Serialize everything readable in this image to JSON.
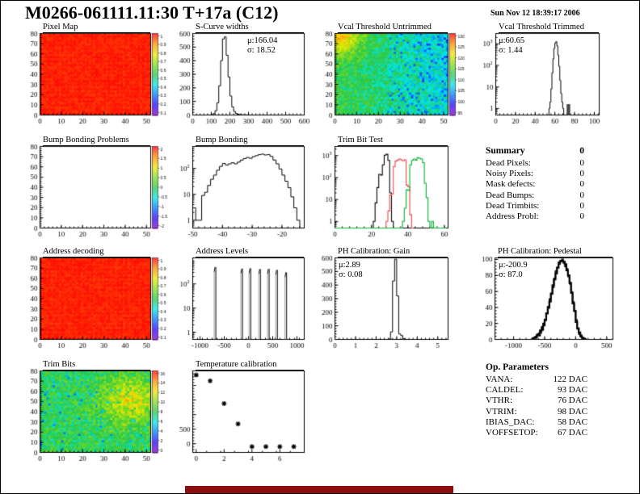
{
  "page": {
    "title": "M0266-061111.11:30 T+17a (C12)",
    "datetime": "Sun Nov 12 18:39:17 2006"
  },
  "colors": {
    "histogram_black": "#000000",
    "histogram_red": "#f04545",
    "histogram_green": "#00b22d",
    "heatmap_red": "#f81000",
    "footer_bar": "#8b0f0f",
    "palette": [
      "#8200c8",
      "#2800ff",
      "#0078ff",
      "#00e6e6",
      "#28c846",
      "#82dc1e",
      "#f0e600",
      "#ff8c00",
      "#ff0000"
    ]
  },
  "chart_data": {
    "pixel_map": {
      "type": "heatmap",
      "variant": "solid-red",
      "title": "Pixel Map",
      "x_range": [
        0,
        52
      ],
      "x_ticks": [
        0,
        10,
        20,
        30,
        40,
        50
      ],
      "y_range": [
        0,
        80
      ],
      "y_ticks": [
        0,
        10,
        20,
        30,
        40,
        50,
        60,
        70,
        80
      ],
      "colorbar_labels": [
        "1",
        "0.9",
        "0.8",
        "0.7",
        "0.6",
        "0.5",
        "0.4",
        "0.3",
        "0.2",
        "0.1"
      ]
    },
    "scurve": {
      "type": "bar",
      "render": "step-histogram",
      "title": "S-Curve widths",
      "x_range": [
        0,
        600
      ],
      "x_ticks": [
        0,
        100,
        200,
        300,
        400,
        500,
        600
      ],
      "y_range": [
        0,
        600
      ],
      "y_ticks": [
        0,
        100,
        200,
        300,
        400,
        500,
        600
      ],
      "bin_width": 10,
      "bins": [
        [
          90,
          1
        ],
        [
          100,
          3
        ],
        [
          110,
          10
        ],
        [
          120,
          32
        ],
        [
          130,
          90
        ],
        [
          140,
          215
        ],
        [
          150,
          400
        ],
        [
          160,
          560
        ],
        [
          170,
          575
        ],
        [
          180,
          440
        ],
        [
          190,
          280
        ],
        [
          200,
          140
        ],
        [
          210,
          60
        ],
        [
          220,
          26
        ],
        [
          230,
          12
        ],
        [
          240,
          6
        ],
        [
          250,
          3
        ],
        [
          260,
          2
        ],
        [
          270,
          1
        ],
        [
          280,
          1
        ],
        [
          290,
          1
        ],
        [
          300,
          1
        ],
        [
          310,
          0
        ]
      ],
      "stats_mu": "μ:166.04",
      "stats_sigma": "σ: 18.52"
    },
    "vcal_untrimmed": {
      "type": "heatmap",
      "variant": "noise-threshold",
      "title": "Vcal Threshold Untrimmed",
      "x_range": [
        0,
        52
      ],
      "x_ticks": [
        0,
        10,
        20,
        30,
        40,
        50
      ],
      "y_range": [
        0,
        80
      ],
      "y_ticks": [
        0,
        10,
        20,
        30,
        40,
        50,
        60,
        70,
        80
      ],
      "colorbar_labels": [
        "130",
        "125",
        "120",
        "115",
        "110",
        "105",
        "100",
        "95"
      ]
    },
    "vcal_trimmed": {
      "type": "bar",
      "render": "step-histogram",
      "title": "Vcal Threshold Trimmed",
      "y_scale": "log",
      "y_log": [
        0.5,
        3000
      ],
      "log_ticks": [
        1,
        10,
        100,
        1000
      ],
      "x_range": [
        0,
        105
      ],
      "x_ticks": [
        0,
        20,
        40,
        60,
        80,
        100
      ],
      "bin_width": 1,
      "bins": [
        [
          54,
          1
        ],
        [
          55,
          2
        ],
        [
          56,
          8
        ],
        [
          57,
          45
        ],
        [
          58,
          200
        ],
        [
          59,
          620
        ],
        [
          60,
          1100
        ],
        [
          61,
          1250
        ],
        [
          62,
          800
        ],
        [
          63,
          300
        ],
        [
          64,
          90
        ],
        [
          65,
          20
        ],
        [
          66,
          5
        ],
        [
          67,
          2
        ],
        [
          68,
          1
        ],
        [
          69,
          0
        ]
      ],
      "outlier_bars": [
        [
          72,
          1.6
        ],
        [
          73.5,
          1.6
        ]
      ],
      "stats_mu": "μ:60.65",
      "stats_sigma": "σ: 1.44"
    },
    "bump_problems": {
      "type": "heatmap",
      "variant": "empty",
      "title": "Bump Bonding Problems",
      "x_range": [
        0,
        52
      ],
      "x_ticks": [
        0,
        10,
        20,
        30,
        40,
        50
      ],
      "y_range": [
        0,
        80
      ],
      "y_ticks": [
        0,
        10,
        20,
        30,
        40,
        50,
        60,
        70,
        80
      ],
      "colorbar_labels": [
        "2",
        "1.5",
        "1",
        "0.5",
        "0",
        "-0.5",
        "-1",
        "-1.5",
        "-2"
      ]
    },
    "bump_bonding": {
      "type": "bar",
      "render": "step-histogram",
      "title": "Bump Bonding",
      "y_scale": "log",
      "y_log": [
        0.5,
        700
      ],
      "log_ticks": [
        1,
        10,
        100
      ],
      "x_range": [
        -50,
        -12.5
      ],
      "x_ticks": [
        -50,
        -40,
        -30,
        -20
      ],
      "bin_width": 1,
      "bins": [
        [
          -50,
          3
        ],
        [
          -49,
          1
        ],
        [
          -48,
          1
        ],
        [
          -47,
          9
        ],
        [
          -46,
          12
        ],
        [
          -45,
          22
        ],
        [
          -44,
          38
        ],
        [
          -43,
          55
        ],
        [
          -42,
          85
        ],
        [
          -41,
          120
        ],
        [
          -40,
          155
        ],
        [
          -39,
          135
        ],
        [
          -38,
          150
        ],
        [
          -37,
          165
        ],
        [
          -36,
          150
        ],
        [
          -35,
          175
        ],
        [
          -34,
          210
        ],
        [
          -33,
          240
        ],
        [
          -32,
          265
        ],
        [
          -31,
          245
        ],
        [
          -30,
          285
        ],
        [
          -29,
          310
        ],
        [
          -28,
          340
        ],
        [
          -27,
          355
        ],
        [
          -26,
          330
        ],
        [
          -25,
          340
        ],
        [
          -24,
          290
        ],
        [
          -23,
          210
        ],
        [
          -22,
          150
        ],
        [
          -21,
          95
        ],
        [
          -20,
          55
        ],
        [
          -19,
          32
        ],
        [
          -18,
          18
        ],
        [
          -17,
          8
        ],
        [
          -16,
          3
        ],
        [
          -15,
          1
        ],
        [
          -14,
          0
        ]
      ]
    },
    "trimbit_test": {
      "type": "bar",
      "render": "multi-step-histogram",
      "title": "Trim Bit Test",
      "y_scale": "log",
      "y_log": [
        0.5,
        2600
      ],
      "log_ticks": [
        1,
        10,
        100,
        1000
      ],
      "x_range": [
        0,
        62
      ],
      "x_ticks": [
        0,
        20,
        40,
        60
      ],
      "bin_width": 1,
      "series": [
        {
          "color_key": "histogram_black",
          "bins": [
            [
              20,
              0
            ],
            [
              21,
              1
            ],
            [
              22,
              7
            ],
            [
              23,
              35
            ],
            [
              24,
              140
            ],
            [
              25,
              130
            ],
            [
              26,
              380
            ],
            [
              27,
              1050
            ],
            [
              28,
              1150
            ],
            [
              29,
              600
            ],
            [
              30,
              20
            ],
            [
              31,
              1
            ],
            [
              32,
              0
            ]
          ]
        },
        {
          "color_key": "histogram_red",
          "bins": [
            [
              27,
              0
            ],
            [
              28,
              1
            ],
            [
              29,
              3
            ],
            [
              30,
              16
            ],
            [
              31,
              18
            ],
            [
              32,
              320
            ],
            [
              33,
              560
            ],
            [
              34,
              620
            ],
            [
              35,
              700
            ],
            [
              36,
              640
            ],
            [
              37,
              580
            ],
            [
              38,
              640
            ],
            [
              39,
              45
            ],
            [
              40,
              38
            ],
            [
              41,
              2
            ],
            [
              42,
              0
            ]
          ]
        },
        {
          "color_key": "histogram_green",
          "bins": [
            [
              0,
              0
            ],
            [
              36,
              0
            ],
            [
              37,
              1
            ],
            [
              38,
              4
            ],
            [
              39,
              28
            ],
            [
              40,
              26
            ],
            [
              41,
              380
            ],
            [
              42,
              600
            ],
            [
              43,
              700
            ],
            [
              44,
              620
            ],
            [
              45,
              800
            ],
            [
              46,
              760
            ],
            [
              47,
              700
            ],
            [
              48,
              480
            ],
            [
              49,
              55
            ],
            [
              50,
              12
            ],
            [
              51,
              1
            ],
            [
              52,
              0
            ],
            [
              53,
              1
            ],
            [
              54,
              0
            ],
            [
              60,
              0
            ]
          ]
        }
      ]
    },
    "address_decoding": {
      "type": "heatmap",
      "variant": "solid-red",
      "title": "Address decoding",
      "x_range": [
        0,
        52
      ],
      "x_ticks": [
        0,
        10,
        20,
        30,
        40,
        50
      ],
      "y_range": [
        0,
        80
      ],
      "y_ticks": [
        0,
        10,
        20,
        30,
        40,
        50,
        60,
        70,
        80
      ],
      "colorbar_labels": [
        "1",
        "0.9",
        "0.8",
        "0.7",
        "0.6",
        "0.5",
        "0.4",
        "0.3",
        "0.2",
        "0.1"
      ]
    },
    "address_levels": {
      "type": "bar",
      "render": "spikes",
      "title": "Address Levels",
      "y_scale": "log",
      "y_log": [
        0.5,
        1200
      ],
      "log_ticks": [
        1,
        10,
        100
      ],
      "x_range": [
        -1150,
        1150
      ],
      "x_ticks": [
        -1000,
        -500,
        0,
        500,
        1000
      ],
      "spikes": [
        [
          -690,
          500
        ],
        [
          -140,
          430
        ],
        [
          30,
          440
        ],
        [
          230,
          410
        ],
        [
          410,
          420
        ],
        [
          580,
          380
        ],
        [
          770,
          300
        ]
      ]
    },
    "ph_gain": {
      "type": "bar",
      "render": "step-histogram",
      "title": "PH Calibration: Gain",
      "x_range": [
        0,
        5.5
      ],
      "x_ticks": [
        0,
        1,
        2,
        3,
        4,
        5
      ],
      "y_range": [
        0,
        600
      ],
      "y_ticks": [
        0,
        100,
        200,
        300,
        400,
        500,
        600
      ],
      "bin_width": 0.1,
      "bins": [
        [
          2.5,
          0
        ],
        [
          2.6,
          3
        ],
        [
          2.7,
          55
        ],
        [
          2.8,
          430
        ],
        [
          2.9,
          590
        ],
        [
          3.0,
          320
        ],
        [
          3.1,
          40
        ],
        [
          3.2,
          28
        ],
        [
          3.3,
          5
        ],
        [
          3.4,
          1
        ],
        [
          3.5,
          0
        ]
      ],
      "stats_mu": "μ:2.89",
      "stats_sigma": "σ: 0.08"
    },
    "ph_pedestal": {
      "type": "bar",
      "render": "thick-histogram",
      "title": "PH Calibration: Pedestal",
      "x_range": [
        -1300,
        600
      ],
      "x_ticks": [
        -1000,
        -500,
        0,
        500
      ],
      "y_range": [
        0,
        102
      ],
      "y_ticks": [
        0,
        20,
        40,
        60,
        80,
        100
      ],
      "bin_width": 25,
      "bins": [
        [
          -700,
          1
        ],
        [
          -675,
          2
        ],
        [
          -650,
          3
        ],
        [
          -625,
          5
        ],
        [
          -600,
          7
        ],
        [
          -575,
          10
        ],
        [
          -550,
          14
        ],
        [
          -525,
          19
        ],
        [
          -500,
          25
        ],
        [
          -475,
          32
        ],
        [
          -450,
          40
        ],
        [
          -425,
          49
        ],
        [
          -400,
          58
        ],
        [
          -375,
          67
        ],
        [
          -350,
          76
        ],
        [
          -325,
          84
        ],
        [
          -300,
          90
        ],
        [
          -275,
          95
        ],
        [
          -250,
          98
        ],
        [
          -225,
          99
        ],
        [
          -200,
          97
        ],
        [
          -175,
          93
        ],
        [
          -150,
          87
        ],
        [
          -125,
          79
        ],
        [
          -100,
          69
        ],
        [
          -75,
          58
        ],
        [
          -50,
          46
        ],
        [
          -25,
          34
        ],
        [
          0,
          23
        ],
        [
          25,
          14
        ],
        [
          50,
          8
        ],
        [
          75,
          4
        ],
        [
          100,
          2
        ],
        [
          125,
          1
        ],
        [
          150,
          0
        ]
      ],
      "stats_mu": "μ:-200.9",
      "stats_sigma": "σ: 87.0"
    },
    "trim_bits": {
      "type": "heatmap",
      "variant": "noise-trim",
      "title": "Trim Bits",
      "x_range": [
        0,
        52
      ],
      "x_ticks": [
        0,
        10,
        20,
        30,
        40,
        50
      ],
      "y_range": [
        0,
        80
      ],
      "y_ticks": [
        0,
        10,
        20,
        30,
        40,
        50,
        60,
        70,
        80
      ],
      "colorbar_labels": [
        "16",
        "14",
        "12",
        "10",
        "8",
        "6",
        "4",
        "2",
        "0"
      ]
    },
    "temp_calib": {
      "type": "scatter",
      "title": "Temperature calibration",
      "x_range": [
        -0.25,
        7.75
      ],
      "x_ticks": [
        0,
        2,
        4,
        6
      ],
      "y_range": [
        -300,
        2500
      ],
      "y_ticks": [
        0,
        500,
        1000,
        1500,
        2000
      ],
      "y_tick_labels": [
        "0",
        "500",
        "",
        "",
        ""
      ],
      "points": [
        [
          0,
          2360
        ],
        [
          1,
          2160
        ],
        [
          2,
          1380
        ],
        [
          3,
          680
        ],
        [
          4,
          -100
        ],
        [
          5,
          -100
        ],
        [
          6,
          -100
        ],
        [
          7,
          -100
        ]
      ]
    }
  },
  "summary": {
    "title": "Summary",
    "total": "0",
    "rows": [
      {
        "label": "Dead Pixels:",
        "value": "0"
      },
      {
        "label": "Noisy Pixels:",
        "value": "0"
      },
      {
        "label": "Mask defects:",
        "value": "0"
      },
      {
        "label": "Dead Bumps:",
        "value": "0"
      },
      {
        "label": "Dead Trimbits:",
        "value": "0"
      },
      {
        "label": "Address Probl:",
        "value": "0"
      }
    ]
  },
  "op_params": {
    "title": "Op. Parameters",
    "rows": [
      {
        "label": "VANA:",
        "value": "122 DAC"
      },
      {
        "label": "CALDEL:",
        "value": "93 DAC"
      },
      {
        "label": "VTHR:",
        "value": "76 DAC"
      },
      {
        "label": "VTRIM:",
        "value": "98 DAC"
      },
      {
        "label": "IBIAS_DAC:",
        "value": "58 DAC"
      },
      {
        "label": "VOFFSETOP:",
        "value": "67 DAC"
      }
    ]
  }
}
